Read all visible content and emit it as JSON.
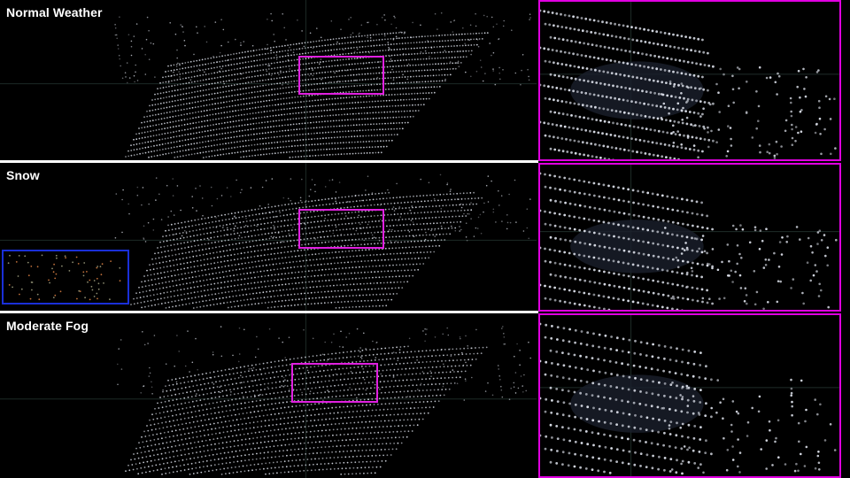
{
  "panels": [
    {
      "label": "Normal Weather"
    },
    {
      "label": "Snow"
    },
    {
      "label": "Moderate Fog"
    }
  ],
  "colors": {
    "roi_box": "#e020e0",
    "noise_box": "#1a2fd8",
    "points": "#d8dce6",
    "separator": "#ffffff"
  }
}
